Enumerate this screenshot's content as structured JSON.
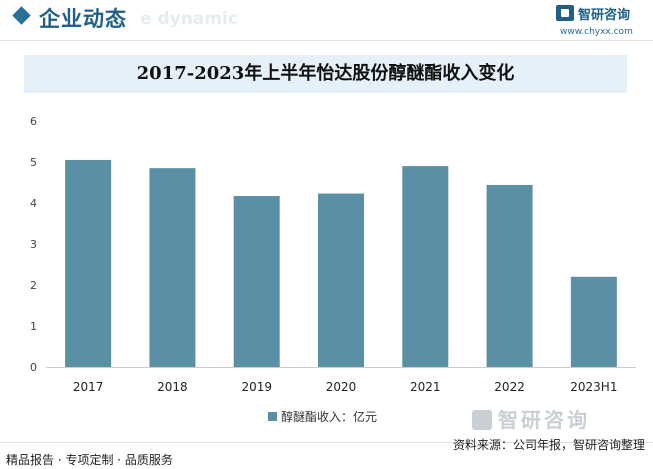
{
  "header": {
    "section_title": "企业动态",
    "ghost_text": "e dynamic",
    "brand_name": "智研咨询",
    "brand_url": "www.chyxx.com"
  },
  "colors": {
    "bar": "#5b8fa6",
    "accent": "#1f5f88",
    "title_band": "#e5f0f8"
  },
  "chart_data": {
    "type": "bar",
    "title": "2017-2023年上半年怡达股份醇醚酯收入变化",
    "categories": [
      "2017",
      "2018",
      "2019",
      "2020",
      "2021",
      "2022",
      "2023H1"
    ],
    "series": [
      {
        "name": "醇醚酯收入：亿元",
        "values": [
          5.05,
          4.85,
          4.17,
          4.23,
          4.9,
          4.44,
          2.2
        ]
      }
    ],
    "ylim": [
      0,
      6
    ],
    "yticks": [
      0,
      1,
      2,
      3,
      4,
      5,
      6
    ],
    "grid": false,
    "legend_position": "bottom"
  },
  "watermark_text": "智研咨询",
  "footer": {
    "left": "精品报告 · 专项定制 · 品质服务",
    "right": "资料来源：公司年报，智研咨询整理"
  }
}
